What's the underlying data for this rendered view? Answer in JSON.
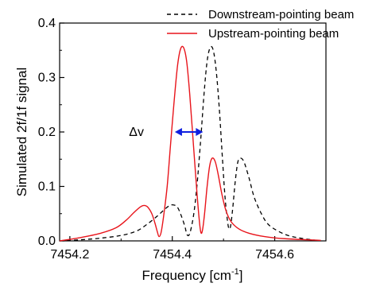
{
  "chart_data": {
    "type": "line",
    "xlabel": "Frequency [cm",
    "xlabel_sup": "-1",
    "xlabel_end": "]",
    "ylabel": "Simulated 2f/1f signal",
    "xlim": [
      7454.18,
      7454.7
    ],
    "ylim": [
      0.0,
      0.4
    ],
    "x_ticks": [
      7454.2,
      7454.4,
      7454.6
    ],
    "x_tick_labels": [
      "7454.2",
      "7454.4",
      "7454.6"
    ],
    "y_ticks": [
      0.0,
      0.1,
      0.2,
      0.3,
      0.4
    ],
    "y_tick_labels": [
      "0.0",
      "0.1",
      "0.2",
      "0.3",
      "0.4"
    ],
    "grid": false,
    "legend_position": "top-right",
    "series": [
      {
        "name": "Downstream-pointing beam",
        "color": "#000000",
        "style": "dashed",
        "points": [
          [
            7454.18,
            0.0
          ],
          [
            7454.22,
            0.002
          ],
          [
            7454.26,
            0.005
          ],
          [
            7454.3,
            0.01
          ],
          [
            7454.33,
            0.018
          ],
          [
            7454.35,
            0.03
          ],
          [
            7454.37,
            0.045
          ],
          [
            7454.385,
            0.058
          ],
          [
            7454.395,
            0.065
          ],
          [
            7454.402,
            0.066
          ],
          [
            7454.41,
            0.062
          ],
          [
            7454.418,
            0.045
          ],
          [
            7454.425,
            0.025
          ],
          [
            7454.428,
            0.013
          ],
          [
            7454.432,
            0.01
          ],
          [
            7454.436,
            0.02
          ],
          [
            7454.442,
            0.05
          ],
          [
            7454.448,
            0.1
          ],
          [
            7454.455,
            0.18
          ],
          [
            7454.462,
            0.27
          ],
          [
            7454.468,
            0.33
          ],
          [
            7454.474,
            0.355
          ],
          [
            7454.48,
            0.35
          ],
          [
            7454.486,
            0.31
          ],
          [
            7454.492,
            0.24
          ],
          [
            7454.498,
            0.15
          ],
          [
            7454.503,
            0.08
          ],
          [
            7454.508,
            0.035
          ],
          [
            7454.511,
            0.022
          ],
          [
            7454.514,
            0.028
          ],
          [
            7454.518,
            0.06
          ],
          [
            7454.523,
            0.11
          ],
          [
            7454.528,
            0.145
          ],
          [
            7454.533,
            0.152
          ],
          [
            7454.54,
            0.145
          ],
          [
            7454.55,
            0.115
          ],
          [
            7454.56,
            0.08
          ],
          [
            7454.575,
            0.048
          ],
          [
            7454.59,
            0.028
          ],
          [
            7454.62,
            0.012
          ],
          [
            7454.65,
            0.005
          ],
          [
            7454.69,
            0.0
          ]
        ]
      },
      {
        "name": "Upstream-pointing beam",
        "color": "#e8141b",
        "style": "solid",
        "points": [
          [
            7454.18,
            0.0
          ],
          [
            7454.22,
            0.006
          ],
          [
            7454.26,
            0.014
          ],
          [
            7454.29,
            0.024
          ],
          [
            7454.31,
            0.038
          ],
          [
            7454.325,
            0.052
          ],
          [
            7454.337,
            0.062
          ],
          [
            7454.345,
            0.065
          ],
          [
            7454.352,
            0.062
          ],
          [
            7454.36,
            0.05
          ],
          [
            7454.366,
            0.033
          ],
          [
            7454.371,
            0.016
          ],
          [
            7454.374,
            0.008
          ],
          [
            7454.378,
            0.015
          ],
          [
            7454.383,
            0.045
          ],
          [
            7454.39,
            0.1
          ],
          [
            7454.396,
            0.17
          ],
          [
            7454.403,
            0.25
          ],
          [
            7454.41,
            0.32
          ],
          [
            7454.416,
            0.352
          ],
          [
            7454.422,
            0.355
          ],
          [
            7454.428,
            0.33
          ],
          [
            7454.434,
            0.27
          ],
          [
            7454.441,
            0.18
          ],
          [
            7454.448,
            0.09
          ],
          [
            7454.453,
            0.035
          ],
          [
            7454.456,
            0.015
          ],
          [
            7454.459,
            0.02
          ],
          [
            7454.463,
            0.05
          ],
          [
            7454.468,
            0.1
          ],
          [
            7454.473,
            0.138
          ],
          [
            7454.478,
            0.152
          ],
          [
            7454.484,
            0.145
          ],
          [
            7454.49,
            0.12
          ],
          [
            7454.497,
            0.085
          ],
          [
            7454.505,
            0.055
          ],
          [
            7454.515,
            0.035
          ],
          [
            7454.53,
            0.022
          ],
          [
            7454.55,
            0.014
          ],
          [
            7454.58,
            0.008
          ],
          [
            7454.62,
            0.004
          ],
          [
            7454.69,
            0.001
          ]
        ]
      }
    ],
    "annotation": {
      "text": "Δv",
      "x": 7454.33,
      "y": 0.2,
      "arrow_x": [
        7454.405,
        7454.46
      ],
      "arrow_y": 0.2,
      "arrow_color": "#1020e0"
    }
  }
}
